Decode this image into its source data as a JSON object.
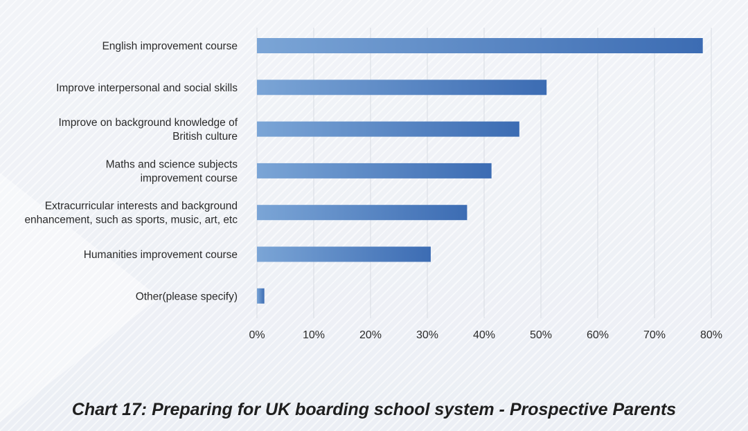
{
  "chart_data": {
    "type": "bar",
    "orientation": "horizontal",
    "categories": [
      "English improvement course",
      "Improve interpersonal and social skills",
      "Improve on background knowledge of British culture",
      "Maths and science subjects improvement course",
      "Extracurricular interests and background enhancement, such as sports, music, art, etc",
      "Humanities improvement course",
      "Other(please specify)"
    ],
    "category_lines": [
      [
        "English improvement course"
      ],
      [
        "Improve interpersonal and social skills"
      ],
      [
        "Improve on background knowledge of",
        "British culture"
      ],
      [
        "Maths and science subjects",
        "improvement course"
      ],
      [
        "Extracurricular interests and background",
        "enhancement, such as sports, music, art, etc"
      ],
      [
        "Humanities improvement course"
      ],
      [
        "Other(please specify)"
      ]
    ],
    "values": [
      78.5,
      51,
      46.2,
      41.3,
      37,
      30.6,
      1.3
    ],
    "xlim": [
      0,
      80
    ],
    "xticks": [
      0,
      10,
      20,
      30,
      40,
      50,
      60,
      70,
      80
    ],
    "tick_labels": [
      "0%",
      "10%",
      "20%",
      "30%",
      "40%",
      "50%",
      "60%",
      "70%",
      "80%"
    ],
    "grid": true,
    "colors": {
      "bar_start": "#7ba5d6",
      "bar_end": "#3c6cb3",
      "grid": "#d8dce3"
    },
    "title": "Chart 17: Preparing for UK boarding school system - Prospective Parents"
  }
}
